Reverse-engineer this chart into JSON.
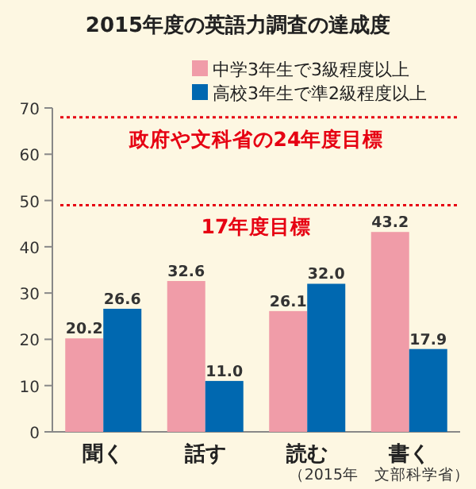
{
  "chart_data": {
    "type": "bar",
    "title": "2015年度の英語力調査の達成度",
    "categories": [
      "聞く",
      "話す",
      "読む",
      "書く"
    ],
    "series": [
      {
        "name": "中学3年生で3級程度以上",
        "color": "#f09ca8",
        "values": [
          20.2,
          32.6,
          26.1,
          43.2
        ],
        "value_labels": [
          "20.2",
          "32.6",
          "26.1",
          "43.2"
        ]
      },
      {
        "name": "高校3年生で準2級程度以上",
        "color": "#0068b0",
        "values": [
          26.6,
          11.0,
          32.0,
          17.9
        ],
        "value_labels": [
          "26.6",
          "11.0",
          "32.0",
          "17.9"
        ]
      }
    ],
    "ylim": [
      0,
      70
    ],
    "yticks": [
      0,
      10,
      20,
      30,
      40,
      50,
      60,
      70
    ],
    "ref_lines": [
      {
        "axis": "y",
        "value": 68,
        "label": "政府や文科省の24年度目標",
        "color": "#e60012",
        "line_style": "dotted"
      },
      {
        "axis": "y",
        "value": 49,
        "label": "17年度目標",
        "color": "#e60012",
        "line_style": "dotted"
      }
    ],
    "legend": "top right",
    "annotations": [
      "（2015年　文部科学省）"
    ]
  }
}
